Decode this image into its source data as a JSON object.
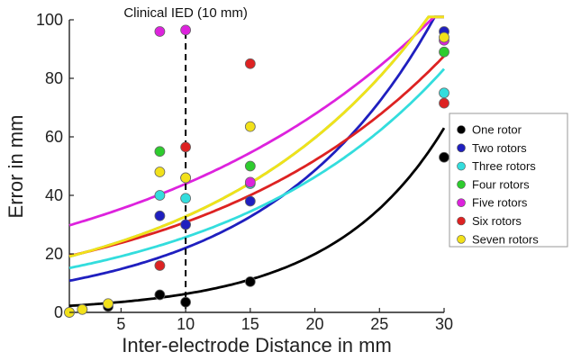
{
  "chart_data": {
    "type": "scatter",
    "xlabel": "Inter-electrode Distance in mm",
    "ylabel": "Error in mm",
    "xlim": [
      1,
      30
    ],
    "ylim": [
      0,
      100
    ],
    "x_ticks": [
      5,
      10,
      15,
      20,
      25,
      30
    ],
    "y_ticks": [
      0,
      20,
      40,
      60,
      80,
      100
    ],
    "annotation": {
      "text": "Clinical IED (10 mm)",
      "x": 10,
      "style": "dashed-vertical-line"
    },
    "legend_position": "right",
    "series": [
      {
        "name": "One rotor",
        "color": "#000000",
        "points": [
          [
            1,
            0
          ],
          [
            2,
            1
          ],
          [
            4,
            2
          ],
          [
            8,
            6
          ],
          [
            10,
            3.5
          ],
          [
            15,
            10.5
          ],
          [
            30,
            53
          ]
        ],
        "fit": [
          2.0,
          0.115
        ]
      },
      {
        "name": "Two rotors",
        "color": "#1f1fbf",
        "points": [
          [
            8,
            33
          ],
          [
            10,
            30
          ],
          [
            15,
            38
          ],
          [
            30,
            96
          ]
        ],
        "fit": [
          10.0,
          0.079
        ]
      },
      {
        "name": "Three rotors",
        "color": "#33dddd",
        "points": [
          [
            8,
            40
          ],
          [
            10,
            39
          ],
          [
            15,
            44
          ],
          [
            30,
            75
          ]
        ],
        "fit": [
          14.3,
          0.0587
        ]
      },
      {
        "name": "Four rotors",
        "color": "#2ecc2e",
        "points": [
          [
            8,
            55
          ],
          [
            10,
            46
          ],
          [
            15,
            50
          ],
          [
            30,
            89
          ]
        ],
        "fit": [
          18.0,
          0.0599
        ]
      },
      {
        "name": "Five rotors",
        "color": "#dd22dd",
        "points": [
          [
            8,
            96
          ],
          [
            10,
            96.5
          ],
          [
            15,
            44.5
          ],
          [
            30,
            93
          ]
        ],
        "fit": [
          28.5,
          0.0433
        ]
      },
      {
        "name": "Six rotors",
        "color": "#dd2222",
        "points": [
          [
            8,
            16
          ],
          [
            10,
            56.5
          ],
          [
            15,
            85
          ],
          [
            30,
            71.5
          ]
        ],
        "fit": [
          18.3,
          0.0522
        ]
      },
      {
        "name": "Seven rotors",
        "color": "#f2e11a",
        "points": [
          [
            1,
            0
          ],
          [
            2,
            1
          ],
          [
            4,
            3
          ],
          [
            8,
            48
          ],
          [
            10,
            46
          ],
          [
            15,
            63.5
          ],
          [
            30,
            94
          ]
        ],
        "fit": [
          18.0,
          0.0599
        ]
      }
    ]
  }
}
